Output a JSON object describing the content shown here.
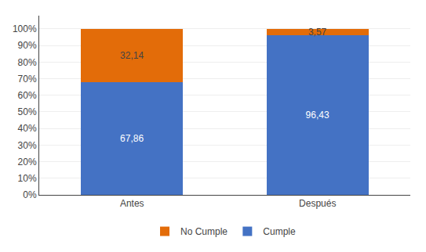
{
  "chart_data": {
    "type": "bar",
    "stacked": true,
    "categories": [
      "Antes",
      "Después"
    ],
    "series": [
      {
        "name": "Cumple",
        "color": "#4472C4",
        "values": [
          67.86,
          96.43
        ],
        "value_labels": [
          "67,86",
          "96,43"
        ]
      },
      {
        "name": "No Cumple",
        "color": "#E36C09",
        "values": [
          32.14,
          3.57
        ],
        "value_labels": [
          "32,14",
          "3,57"
        ]
      }
    ],
    "ylim": [
      0,
      108
    ],
    "yticks": [
      {
        "value": 0,
        "label": "0%"
      },
      {
        "value": 10,
        "label": "10%"
      },
      {
        "value": 20,
        "label": "20%"
      },
      {
        "value": 30,
        "label": "30%"
      },
      {
        "value": 40,
        "label": "40%"
      },
      {
        "value": 50,
        "label": "50%"
      },
      {
        "value": 60,
        "label": "60%"
      },
      {
        "value": 70,
        "label": "70%"
      },
      {
        "value": 80,
        "label": "80%"
      },
      {
        "value": 90,
        "label": "90%"
      },
      {
        "value": 100,
        "label": "100%"
      }
    ],
    "grid": true,
    "legend": "bottom",
    "data_labels": true
  }
}
